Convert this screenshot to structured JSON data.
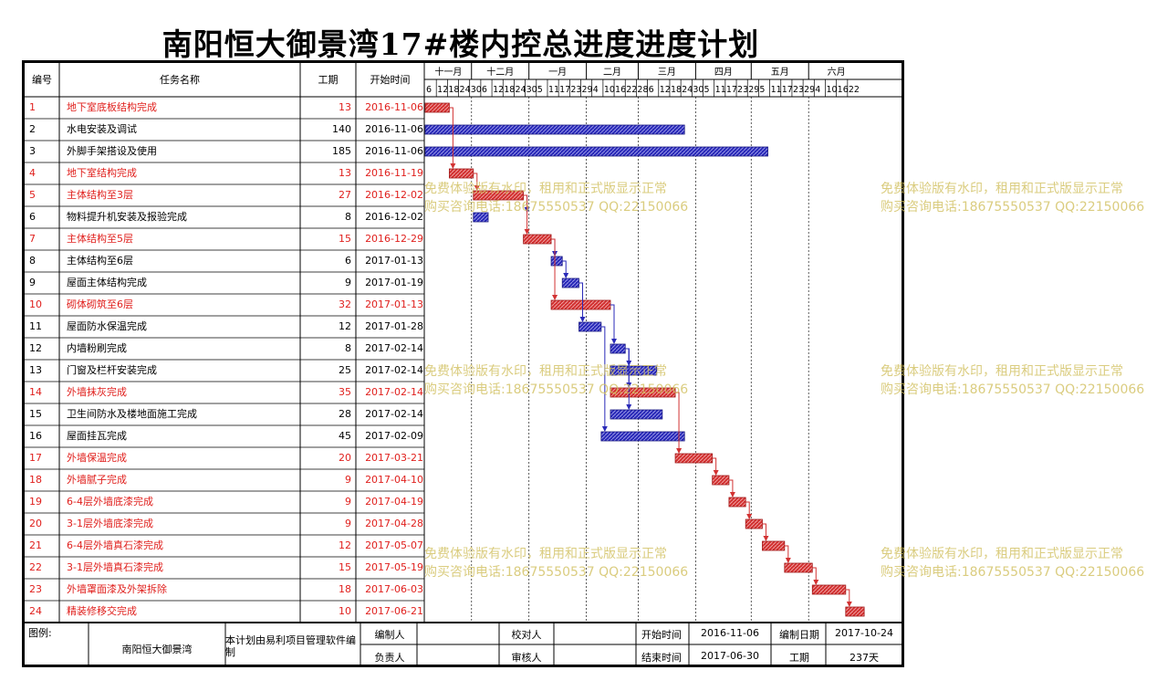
{
  "title": "南阳恒大御景湾17#楼内控总进度进度计划",
  "headers": {
    "id": "编号",
    "name": "任务名称",
    "duration": "工期",
    "start": "开始时间"
  },
  "months": [
    "十一月",
    "十二月",
    "一月",
    "二月",
    "三月",
    "四月",
    "五月",
    "六月"
  ],
  "day_ticks": [
    "6",
    "12",
    "18",
    "24",
    "30",
    "6",
    "12",
    "18",
    "24",
    "30",
    "5",
    "11",
    "17",
    "23",
    "29",
    "4",
    "10",
    "16",
    "22",
    "28",
    "6",
    "12",
    "18",
    "24",
    "30",
    "5",
    "11",
    "17",
    "23",
    "29",
    "5",
    "11",
    "17",
    "23",
    "29",
    "4",
    "10",
    "16",
    "22"
  ],
  "colors": {
    "critical": "#e0201d",
    "normal": "#000000",
    "critical_bar": "#d23232",
    "normal_bar": "#2a2ab8",
    "watermark": "#d2c060"
  },
  "chart_data": {
    "type": "gantt",
    "x_start": "2016-11-06",
    "x_end": "2017-06-30",
    "tasks": [
      {
        "id": "1",
        "name": "地下室底板结构完成",
        "duration": "13",
        "start": "2016-11-06",
        "critical": true
      },
      {
        "id": "2",
        "name": "水电安装及调试",
        "duration": "140",
        "start": "2016-11-06",
        "critical": false
      },
      {
        "id": "3",
        "name": "外脚手架搭设及使用",
        "duration": "185",
        "start": "2016-11-06",
        "critical": false
      },
      {
        "id": "4",
        "name": "地下室结构完成",
        "duration": "13",
        "start": "2016-11-19",
        "critical": true
      },
      {
        "id": "5",
        "name": "主体结构至3层",
        "duration": "27",
        "start": "2016-12-02",
        "critical": true
      },
      {
        "id": "6",
        "name": "物料提升机安装及报验完成",
        "duration": "8",
        "start": "2016-12-02",
        "critical": false
      },
      {
        "id": "7",
        "name": "主体结构至5层",
        "duration": "15",
        "start": "2016-12-29",
        "critical": true
      },
      {
        "id": "8",
        "name": "主体结构至6层",
        "duration": "6",
        "start": "2017-01-13",
        "critical": false
      },
      {
        "id": "9",
        "name": "屋面主体结构完成",
        "duration": "9",
        "start": "2017-01-19",
        "critical": false
      },
      {
        "id": "10",
        "name": "砌体砌筑至6层",
        "duration": "32",
        "start": "2017-01-13",
        "critical": true
      },
      {
        "id": "11",
        "name": "屋面防水保温完成",
        "duration": "12",
        "start": "2017-01-28",
        "critical": false
      },
      {
        "id": "12",
        "name": "内墙粉刷完成",
        "duration": "8",
        "start": "2017-02-14",
        "critical": false
      },
      {
        "id": "13",
        "name": "门窗及栏杆安装完成",
        "duration": "25",
        "start": "2017-02-14",
        "critical": false
      },
      {
        "id": "14",
        "name": "外墙抹灰完成",
        "duration": "35",
        "start": "2017-02-14",
        "critical": true
      },
      {
        "id": "15",
        "name": "卫生间防水及楼地面施工完成",
        "duration": "28",
        "start": "2017-02-14",
        "critical": false
      },
      {
        "id": "16",
        "name": "屋面挂瓦完成",
        "duration": "45",
        "start": "2017-02-09",
        "critical": false
      },
      {
        "id": "17",
        "name": "外墙保温完成",
        "duration": "20",
        "start": "2017-03-21",
        "critical": true
      },
      {
        "id": "18",
        "name": "外墙腻子完成",
        "duration": "9",
        "start": "2017-04-10",
        "critical": true
      },
      {
        "id": "19",
        "name": "6-4层外墙底漆完成",
        "duration": "9",
        "start": "2017-04-19",
        "critical": true
      },
      {
        "id": "20",
        "name": "3-1层外墙底漆完成",
        "duration": "9",
        "start": "2017-04-28",
        "critical": true
      },
      {
        "id": "21",
        "name": "6-4层外墙真石漆完成",
        "duration": "12",
        "start": "2017-05-07",
        "critical": true
      },
      {
        "id": "22",
        "name": "3-1层外墙真石漆完成",
        "duration": "15",
        "start": "2017-05-19",
        "critical": true
      },
      {
        "id": "23",
        "name": "外墙罩面漆及外架拆除",
        "duration": "18",
        "start": "2017-06-03",
        "critical": true
      },
      {
        "id": "24",
        "name": "精装修移交完成",
        "duration": "10",
        "start": "2017-06-21",
        "critical": true
      }
    ],
    "links": [
      [
        1,
        4
      ],
      [
        4,
        5
      ],
      [
        5,
        6
      ],
      [
        5,
        7
      ],
      [
        7,
        8
      ],
      [
        8,
        9
      ],
      [
        7,
        10
      ],
      [
        9,
        11
      ],
      [
        10,
        12
      ],
      [
        11,
        16
      ],
      [
        12,
        13
      ],
      [
        12,
        14
      ],
      [
        12,
        15
      ],
      [
        14,
        17
      ],
      [
        17,
        18
      ],
      [
        18,
        19
      ],
      [
        19,
        20
      ],
      [
        20,
        21
      ],
      [
        21,
        22
      ],
      [
        22,
        23
      ],
      [
        23,
        24
      ]
    ]
  },
  "footer": {
    "legend_label": "图例:",
    "project": "南阳恒大御景湾",
    "software_note": "本计划由易利项目管理软件编制",
    "compiler_label": "编制人",
    "checker_label": "校对人",
    "start_label": "开始时间",
    "start_value": "2016-11-06",
    "compile_date_label": "编制日期",
    "compile_date_value": "2017-10-24",
    "owner_label": "负责人",
    "reviewer_label": "审核人",
    "end_label": "结束时间",
    "end_value": "2017-06-30",
    "duration_label": "工期",
    "duration_value": "237天"
  },
  "watermark": {
    "line1": "免费体验版有水印，租用和正式版显示正常",
    "line2": "购买咨询电话:18675550537 QQ:22150066"
  }
}
